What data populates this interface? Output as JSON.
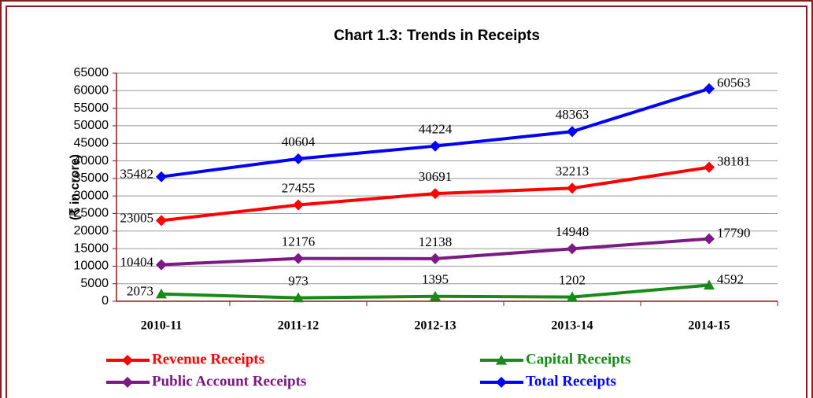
{
  "chart_data": {
    "type": "line",
    "title": "Chart 1.3: Trends in Receipts",
    "y_label": "(₹ in crore)",
    "categories": [
      "2010-11",
      "2011-12",
      "2012-13",
      "2013-14",
      "2014-15"
    ],
    "series": [
      {
        "name": "Revenue Receipts",
        "color": "#ff0000",
        "marker": "diamond",
        "values": [
          23005,
          27455,
          30691,
          32213,
          38181
        ]
      },
      {
        "name": "Capital Receipts",
        "color": "#178a17",
        "marker": "triangle",
        "values": [
          2073,
          973,
          1395,
          1202,
          4592
        ]
      },
      {
        "name": "Public Account Receipts",
        "color": "#7b1a82",
        "marker": "diamond",
        "values": [
          10404,
          12176,
          12138,
          14948,
          17790
        ]
      },
      {
        "name": "Total Receipts",
        "color": "#0000ff",
        "marker": "diamond",
        "values": [
          35482,
          40604,
          44224,
          48363,
          60563
        ]
      }
    ],
    "ylim": [
      0,
      65000
    ],
    "yticks": [
      0,
      5000,
      10000,
      15000,
      20000,
      25000,
      30000,
      35000,
      40000,
      45000,
      50000,
      55000,
      60000,
      65000
    ],
    "grid": true
  }
}
